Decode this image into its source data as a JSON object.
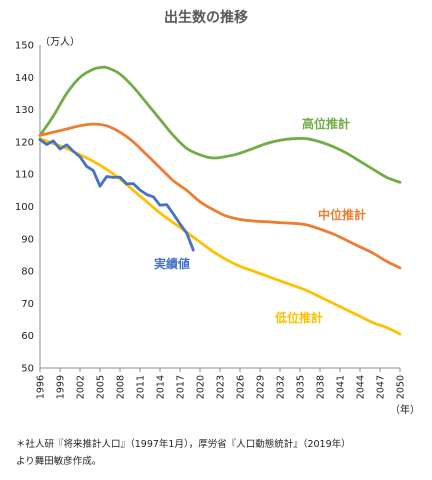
{
  "chart_data": {
    "type": "line",
    "title": "出生数の推移",
    "ylabel": "（万人）",
    "xlabel": "（年）",
    "ylim": [
      50,
      150
    ],
    "xlim": [
      1996,
      2050
    ],
    "yticks": [
      50,
      60,
      70,
      80,
      90,
      100,
      110,
      120,
      130,
      140,
      150
    ],
    "xticks": [
      1996,
      1999,
      2002,
      2005,
      2008,
      2011,
      2014,
      2017,
      2020,
      2023,
      2026,
      2029,
      2032,
      2035,
      2038,
      2041,
      2044,
      2047,
      2050
    ],
    "grid": false,
    "legend": "inline labels",
    "series": [
      {
        "name": "高位推計",
        "color": "#70ad47",
        "x": [
          1996,
          1998,
          2000,
          2002,
          2004,
          2005,
          2006,
          2008,
          2010,
          2012,
          2014,
          2016,
          2018,
          2020,
          2022,
          2024,
          2026,
          2028,
          2030,
          2032,
          2034,
          2036,
          2038,
          2040,
          2042,
          2044,
          2046,
          2048,
          2050
        ],
        "values": [
          122,
          128,
          135,
          140,
          142.5,
          143,
          143,
          141,
          137,
          132,
          127,
          122,
          118,
          116,
          115,
          115.5,
          116.5,
          118,
          119.5,
          120.5,
          121,
          121,
          120,
          118.5,
          116.5,
          114,
          111.5,
          109,
          107.5
        ]
      },
      {
        "name": "中位推計",
        "color": "#ed7d31",
        "x": [
          1996,
          1998,
          2000,
          2002,
          2004,
          2006,
          2008,
          2010,
          2012,
          2014,
          2016,
          2018,
          2020,
          2022,
          2024,
          2026,
          2028,
          2030,
          2032,
          2034,
          2036,
          2038,
          2040,
          2042,
          2044,
          2046,
          2048,
          2050
        ],
        "values": [
          122,
          123,
          124,
          125,
          125.5,
          125,
          123,
          120,
          116,
          112,
          108,
          105,
          101.5,
          99,
          97,
          96,
          95.5,
          95.3,
          95,
          94.8,
          94.3,
          93,
          91.5,
          89.5,
          87.5,
          85.5,
          83,
          81
        ]
      },
      {
        "name": "低位推計",
        "color": "#ffc000",
        "x": [
          1996,
          1998,
          2000,
          2002,
          2004,
          2006,
          2008,
          2010,
          2012,
          2014,
          2016,
          2018,
          2020,
          2022,
          2024,
          2026,
          2028,
          2030,
          2032,
          2034,
          2036,
          2038,
          2040,
          2042,
          2044,
          2046,
          2048,
          2050
        ],
        "values": [
          121,
          119.5,
          118,
          116,
          114,
          111.5,
          108.5,
          105,
          101.5,
          98,
          95,
          92,
          89,
          86,
          83.5,
          81.5,
          80,
          78.5,
          77,
          75.5,
          74,
          72,
          70,
          68,
          66,
          64,
          62.5,
          60.5
        ]
      },
      {
        "name": "実績値",
        "color": "#4472c4",
        "x": [
          1996,
          1997,
          1998,
          1999,
          2000,
          2001,
          2002,
          2003,
          2004,
          2005,
          2006,
          2007,
          2008,
          2009,
          2010,
          2011,
          2012,
          2013,
          2014,
          2015,
          2016,
          2017,
          2018,
          2019
        ],
        "values": [
          120.7,
          119.2,
          120.3,
          117.8,
          119.1,
          117.1,
          115.4,
          112.4,
          111.1,
          106.3,
          109.3,
          109.0,
          109.1,
          107.0,
          107.1,
          105.1,
          103.7,
          103.0,
          100.4,
          100.6,
          97.7,
          94.6,
          91.8,
          86.5
        ]
      }
    ]
  },
  "footnote_lines": [
    "＊社人研『将来推計人口』（1997年1月），厚労省『人口動態統計』（2019年）",
    "より舞田敏彦作成。"
  ]
}
